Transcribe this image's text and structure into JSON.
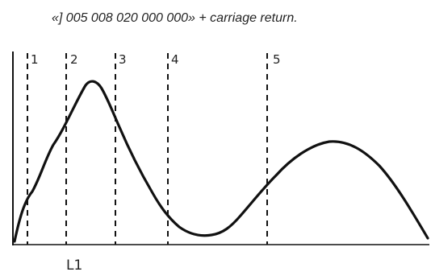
{
  "caption": "«] 005 008 020 000 000» + carriage return.",
  "markers": [
    "1",
    "2",
    "3",
    "4",
    "5"
  ],
  "footer_label": "L1",
  "colors": {
    "line": "#111111",
    "text": "#222222",
    "background": "#ffffff"
  }
}
